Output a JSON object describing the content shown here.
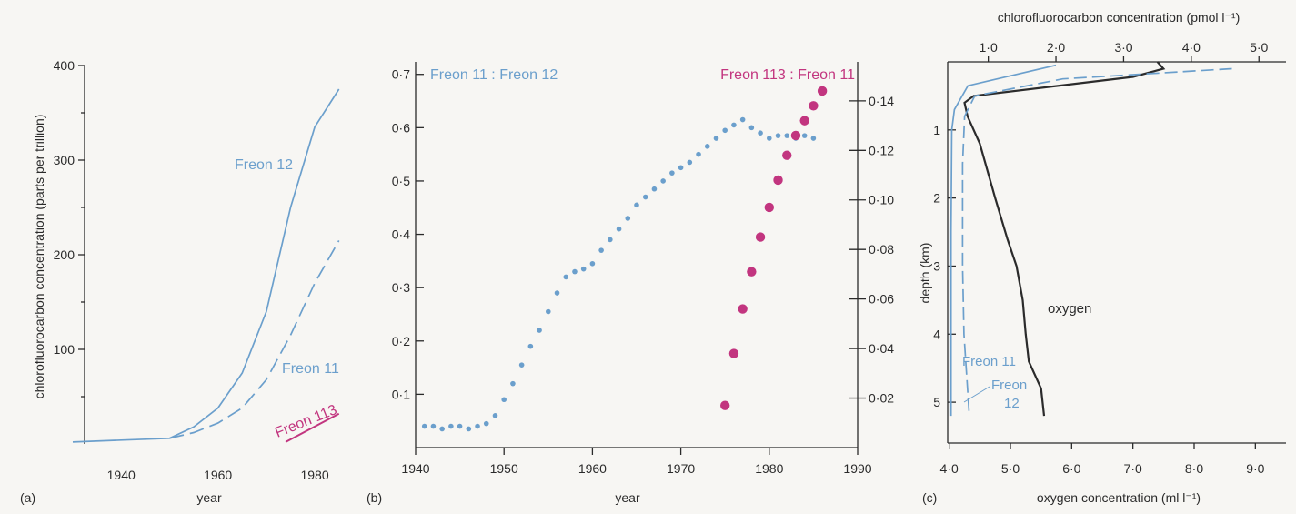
{
  "colors": {
    "freon_blue": "#6b9fcc",
    "freon_magenta": "#c2357f",
    "oxygen_dark": "#2b2b2b",
    "background": "#f7f6f3"
  },
  "chart_data": [
    {
      "type": "line",
      "panel_label": "(a)",
      "xlabel": "year",
      "ylabel": "chlorofluorocarbon concentration (parts per trillion)",
      "xlim": [
        1930,
        1986
      ],
      "ylim": [
        0,
        400
      ],
      "x_ticks": [
        1940,
        1960,
        1980
      ],
      "y_ticks": [
        100,
        200,
        300,
        400
      ],
      "y_minor_ticks": [
        50,
        150,
        250,
        350
      ],
      "grid": false,
      "series": [
        {
          "name": "Freon 12",
          "style": "solid",
          "x": [
            1930,
            1940,
            1950,
            1955,
            1960,
            1965,
            1970,
            1975,
            1980,
            1985
          ],
          "y": [
            2,
            4,
            6,
            18,
            38,
            75,
            140,
            250,
            335,
            375
          ]
        },
        {
          "name": "Freon 11",
          "style": "dashed",
          "x": [
            1950,
            1955,
            1960,
            1965,
            1970,
            1975,
            1980,
            1985
          ],
          "y": [
            6,
            12,
            22,
            38,
            68,
            115,
            170,
            215
          ]
        },
        {
          "name": "Freon 113",
          "style": "solid",
          "x": [
            1974,
            1985
          ],
          "y": [
            2,
            32
          ]
        }
      ]
    },
    {
      "type": "scatter",
      "panel_label": "(b)",
      "xlabel": "year",
      "xlim": [
        1940,
        1990
      ],
      "ylim_left": [
        0,
        0.72
      ],
      "ylim_right": [
        0,
        0.155
      ],
      "x_ticks": [
        1940,
        1950,
        1960,
        1970,
        1980,
        1990
      ],
      "y_ticks_left": [
        "0·1",
        "0·2",
        "0·3",
        "0·4",
        "0·5",
        "0·6",
        "0·7"
      ],
      "y_tick_values_left": [
        0.1,
        0.2,
        0.3,
        0.4,
        0.5,
        0.6,
        0.7
      ],
      "y_ticks_right": [
        "0·02",
        "0·04",
        "0·06",
        "0·08",
        "0·10",
        "0·12",
        "0·14"
      ],
      "y_tick_values_right": [
        0.02,
        0.04,
        0.06,
        0.08,
        0.1,
        0.12,
        0.14
      ],
      "grid": false,
      "series": [
        {
          "name": "Freon 11 : Freon 12",
          "axis": "left",
          "x": [
            1941,
            1942,
            1943,
            1944,
            1945,
            1946,
            1947,
            1948,
            1949,
            1950,
            1951,
            1952,
            1953,
            1954,
            1955,
            1956,
            1957,
            1958,
            1959,
            1960,
            1961,
            1962,
            1963,
            1964,
            1965,
            1966,
            1967,
            1968,
            1969,
            1970,
            1971,
            1972,
            1973,
            1974,
            1975,
            1976,
            1977,
            1978,
            1979,
            1980,
            1981,
            1982,
            1983,
            1984,
            1985
          ],
          "y": [
            0.04,
            0.04,
            0.035,
            0.04,
            0.04,
            0.035,
            0.04,
            0.045,
            0.06,
            0.09,
            0.12,
            0.155,
            0.19,
            0.22,
            0.255,
            0.29,
            0.32,
            0.33,
            0.335,
            0.345,
            0.37,
            0.39,
            0.41,
            0.43,
            0.455,
            0.47,
            0.485,
            0.5,
            0.515,
            0.525,
            0.535,
            0.55,
            0.565,
            0.58,
            0.595,
            0.605,
            0.615,
            0.6,
            0.59,
            0.58,
            0.585,
            0.585,
            0.58,
            0.585,
            0.58
          ]
        },
        {
          "name": "Freon 113 : Freon 11",
          "axis": "right",
          "x": [
            1975,
            1976,
            1977,
            1978,
            1979,
            1980,
            1981,
            1982,
            1983,
            1984,
            1985,
            1986
          ],
          "y": [
            0.017,
            0.038,
            0.056,
            0.071,
            0.085,
            0.097,
            0.108,
            0.118,
            0.126,
            0.132,
            0.138,
            0.144
          ]
        }
      ]
    },
    {
      "type": "line",
      "panel_label": "(c)",
      "ylabel": "depth (km)",
      "ylim": [
        0,
        5.6
      ],
      "y_ticks": [
        1,
        2,
        3,
        4,
        5
      ],
      "top_xlabel": "chlorofluorocarbon concentration (pmol  l⁻¹)",
      "top_xlim": [
        0.4,
        5.4
      ],
      "top_x_ticks": [
        "1·0",
        "2·0",
        "3·0",
        "4·0",
        "5·0"
      ],
      "top_x_tick_values": [
        1,
        2,
        3,
        4,
        5
      ],
      "bottom_xlabel": "oxygen concentration (ml  l⁻¹)",
      "bottom_xlim": [
        3.5,
        9.5
      ],
      "bottom_x_ticks": [
        "4·0",
        "5·0",
        "6·0",
        "7·0",
        "8·0",
        "9·0"
      ],
      "bottom_x_tick_values": [
        4,
        5,
        6,
        7,
        8,
        9
      ],
      "grid": false,
      "series": [
        {
          "name": "oxygen",
          "axis": "bottom",
          "style": "solid",
          "x": [
            7.4,
            7.5,
            7.0,
            4.4,
            4.25,
            4.3,
            4.5,
            4.75,
            4.95,
            5.1,
            5.2,
            5.25,
            5.3,
            5.5,
            5.55
          ],
          "y": [
            0.0,
            0.1,
            0.22,
            0.5,
            0.6,
            0.8,
            1.2,
            2.0,
            2.6,
            3.0,
            3.5,
            4.0,
            4.4,
            4.8,
            5.2
          ]
        },
        {
          "name": "Freon 11",
          "axis": "top",
          "style": "solid",
          "x": [
            2.0,
            0.7,
            0.5,
            0.46,
            0.45,
            0.45,
            0.45
          ],
          "y": [
            0.05,
            0.35,
            0.7,
            1.0,
            2.5,
            4.0,
            5.2
          ]
        },
        {
          "name": "Freon 12",
          "axis": "top",
          "style": "dashed",
          "x": [
            4.6,
            2.1,
            0.8,
            0.65,
            0.62,
            0.62,
            0.64,
            0.72
          ],
          "y": [
            0.1,
            0.25,
            0.5,
            0.8,
            1.5,
            3.0,
            4.0,
            5.2
          ]
        }
      ]
    }
  ]
}
